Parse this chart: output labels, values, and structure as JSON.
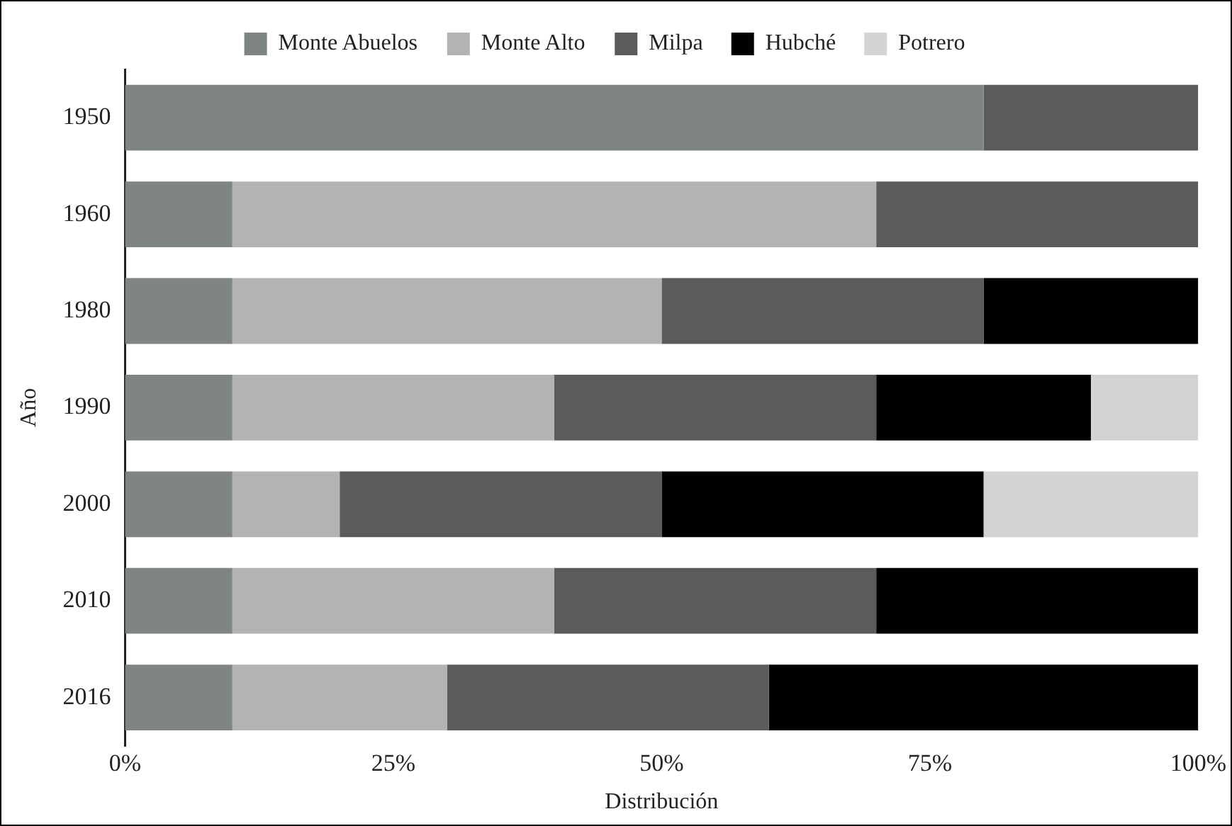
{
  "chart_data": {
    "type": "bar",
    "orientation": "horizontal",
    "stacked": true,
    "xlabel": "Distribución",
    "ylabel": "Año",
    "categories": [
      "1950",
      "1960",
      "1980",
      "1990",
      "2000",
      "2010",
      "2016"
    ],
    "series": [
      {
        "name": "Monte Abuelos",
        "color": "#7f8580",
        "values": [
          80,
          10,
          10,
          10,
          10,
          10,
          10
        ]
      },
      {
        "name": "Monte Alto",
        "color": "#b3b3b3",
        "values": [
          0,
          60,
          40,
          30,
          10,
          30,
          20
        ]
      },
      {
        "name": "Milpa",
        "color": "#595c5a",
        "values": [
          20,
          30,
          30,
          30,
          30,
          30,
          30
        ]
      },
      {
        "name": "Hubché",
        "color": "#000000",
        "values": [
          0,
          0,
          20,
          20,
          30,
          30,
          40
        ]
      },
      {
        "name": "Potrero",
        "color": "#d3d3d3",
        "values": [
          0,
          0,
          0,
          10,
          20,
          0,
          0
        ]
      }
    ],
    "xlim": [
      0,
      100
    ],
    "xticks": [
      {
        "value": 0,
        "label": "0%"
      },
      {
        "value": 25,
        "label": "25%"
      },
      {
        "value": 50,
        "label": "50%"
      },
      {
        "value": 75,
        "label": "75%"
      },
      {
        "value": 100,
        "label": "100%"
      }
    ],
    "grid": false,
    "legend": "top"
  }
}
